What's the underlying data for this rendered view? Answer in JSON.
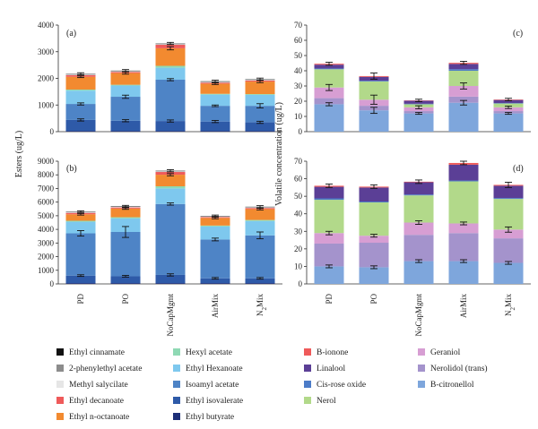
{
  "chart_data": [
    {
      "panel": "(a)",
      "type": "bar",
      "stacked": true,
      "ylabel": "",
      "ylim": [
        0,
        4000
      ],
      "yticks": [
        0,
        1000,
        2000,
        3000,
        4000
      ],
      "categories": [
        "PD",
        "PO",
        "NoCapMgmt",
        "AirMix",
        "N2Mix"
      ],
      "series": [
        {
          "name": "Ethyl butyrate",
          "values": [
            30,
            30,
            30,
            30,
            30
          ]
        },
        {
          "name": "Ethyl isovalerate",
          "values": [
            410,
            380,
            370,
            350,
            320
          ]
        },
        {
          "name": "Isoamyl acetate",
          "values": [
            600,
            900,
            1550,
            590,
            620
          ]
        },
        {
          "name": "Ethyl Hexanoate",
          "values": [
            500,
            420,
            450,
            420,
            410
          ]
        },
        {
          "name": "Hexyl acetate",
          "values": [
            40,
            30,
            70,
            30,
            30
          ]
        },
        {
          "name": "Ethyl n-octanoate",
          "values": [
            480,
            440,
            660,
            380,
            470
          ]
        },
        {
          "name": "Ethyl decanoate",
          "values": [
            60,
            40,
            130,
            40,
            40
          ]
        },
        {
          "name": "Methyl salycilate",
          "values": [
            20,
            20,
            20,
            20,
            20
          ]
        },
        {
          "name": "2-phenylethyl acetate",
          "values": [
            20,
            20,
            20,
            20,
            20
          ]
        },
        {
          "name": "Ethyl cinnamate",
          "values": [
            10,
            10,
            10,
            10,
            10
          ]
        }
      ],
      "error_bars": [
        [
          40,
          40,
          40,
          40,
          40
        ],
        [
          40,
          60,
          40,
          30,
          80
        ],
        [
          30,
          40,
          60,
          30,
          40
        ],
        [
          40,
          40,
          40,
          40,
          40
        ]
      ]
    },
    {
      "panel": "(b)",
      "type": "bar",
      "stacked": true,
      "ylabel": "",
      "ylim": [
        0,
        9000
      ],
      "yticks": [
        0,
        1000,
        2000,
        3000,
        4000,
        5000,
        6000,
        7000,
        8000,
        9000
      ],
      "categories": [
        "PD",
        "PO",
        "NoCapMgmt",
        "AirMix",
        "N2Mix"
      ],
      "series": [
        {
          "name": "Ethyl butyrate",
          "values": [
            60,
            60,
            60,
            60,
            60
          ]
        },
        {
          "name": "Ethyl isovalerate",
          "values": [
            550,
            500,
            600,
            350,
            350
          ]
        },
        {
          "name": "Isoamyl acetate",
          "values": [
            3100,
            3250,
            5200,
            2850,
            3150
          ]
        },
        {
          "name": "Ethyl Hexanoate",
          "values": [
            850,
            1000,
            1150,
            950,
            1050
          ]
        },
        {
          "name": "Hexyl acetate",
          "values": [
            70,
            80,
            150,
            70,
            80
          ]
        },
        {
          "name": "Ethyl n-octanoate",
          "values": [
            480,
            640,
            850,
            560,
            800
          ]
        },
        {
          "name": "Ethyl decanoate",
          "values": [
            100,
            80,
            200,
            60,
            80
          ]
        },
        {
          "name": "Methyl salycilate",
          "values": [
            40,
            40,
            40,
            40,
            40
          ]
        },
        {
          "name": "2-phenylethyl acetate",
          "values": [
            30,
            30,
            30,
            30,
            30
          ]
        },
        {
          "name": "Ethyl cinnamate",
          "values": [
            20,
            20,
            20,
            20,
            20
          ]
        }
      ],
      "error_bars": [
        [
          60,
          60,
          80,
          60,
          60
        ],
        [
          200,
          400,
          80,
          100,
          250
        ],
        [
          60,
          60,
          80,
          60,
          60
        ],
        [
          60,
          60,
          80,
          60,
          80
        ]
      ]
    },
    {
      "panel": "(c)",
      "type": "bar",
      "stacked": true,
      "ylabel": "",
      "ylim": [
        0,
        70
      ],
      "yticks": [
        0,
        10,
        20,
        30,
        40,
        50,
        60,
        70
      ],
      "categories": [
        "PD",
        "PO",
        "NoCapMgmt",
        "AirMix",
        "N2Mix"
      ],
      "series": [
        {
          "name": "B-citronellol",
          "values": [
            18,
            14,
            12,
            19,
            12
          ]
        },
        {
          "name": "Nerolidol (trans)",
          "values": [
            4,
            3,
            1.5,
            4,
            1.5
          ]
        },
        {
          "name": "Geraniol",
          "values": [
            7,
            4,
            2.5,
            7,
            2.5
          ]
        },
        {
          "name": "Nerol",
          "values": [
            12,
            12,
            2,
            10,
            2.5
          ]
        },
        {
          "name": "Cis-rose oxide",
          "values": [
            0.5,
            0.5,
            0.3,
            1,
            0.3
          ]
        },
        {
          "name": "Linalool",
          "values": [
            2.5,
            2.5,
            2,
            3.5,
            2
          ]
        },
        {
          "name": "B-ionone",
          "values": [
            0.6,
            0.5,
            0.2,
            0.7,
            0.3
          ]
        }
      ],
      "error_bars": [
        [
          1,
          2,
          0.6,
          1.5,
          0.6
        ],
        [
          2,
          3,
          1,
          2,
          0.8
        ],
        [
          1,
          2,
          0.8,
          1,
          0.8
        ]
      ]
    },
    {
      "panel": "(d)",
      "type": "bar",
      "stacked": true,
      "ylabel": "",
      "ylim": [
        0,
        70
      ],
      "yticks": [
        0,
        10,
        20,
        30,
        40,
        50,
        60,
        70
      ],
      "categories": [
        "PD",
        "PO",
        "NoCapMgmt",
        "AirMix",
        "N2Mix"
      ],
      "series": [
        {
          "name": "B-citronellol",
          "values": [
            10,
            9.5,
            13,
            13,
            12
          ]
        },
        {
          "name": "Nerolidol (trans)",
          "values": [
            13,
            14,
            15,
            16,
            14
          ]
        },
        {
          "name": "Geraniol",
          "values": [
            6,
            4,
            7,
            5.5,
            5
          ]
        },
        {
          "name": "Nerol",
          "values": [
            19,
            19,
            15.5,
            24,
            17.5
          ]
        },
        {
          "name": "Cis-rose oxide",
          "values": [
            0.8,
            0.5,
            0.5,
            0.5,
            0.5
          ]
        },
        {
          "name": "Linalool",
          "values": [
            6.6,
            8,
            7,
            9,
            7
          ]
        },
        {
          "name": "B-ionone",
          "values": [
            0.6,
            0.5,
            0.3,
            1,
            0.5
          ]
        }
      ],
      "error_bars": [
        [
          0.8,
          0.8,
          0.8,
          0.8,
          0.8
        ],
        [
          1,
          0.8,
          1,
          0.8,
          1.5
        ],
        [
          1,
          1,
          1,
          1,
          1.5
        ]
      ]
    }
  ],
  "ylabel_left": "Esters (ug/L)",
  "ylabel_right": "Volatile concentration (ug/L)",
  "colors": {
    "Ethyl cinnamate": "#111111",
    "2-phenylethyl acetate": "#8c8c8c",
    "Methyl salycilate": "#e6e6e6",
    "Ethyl decanoate": "#ef5a5a",
    "Ethyl n-octanoate": "#f28a30",
    "Hexyl acetate": "#8fd9b4",
    "Ethyl Hexanoate": "#7ec8ee",
    "Isoamyl acetate": "#4e84c6",
    "Ethyl isovalerate": "#2e5aa8",
    "Ethyl butyrate": "#1d2f78",
    "B-ionone": "#ef5a5a",
    "Linalool": "#5b3f96",
    "Cis-rose oxide": "#4c7cc8",
    "Nerol": "#b2d98a",
    "Geraniol": "#d79ed3",
    "Nerolidol (trans)": "#a493cc",
    "B-citronellol": "#7ea6dc"
  },
  "legend_esters": [
    "Ethyl cinnamate",
    "Hexyl acetate",
    "2-phenylethyl acetate",
    "Ethyl Hexanoate",
    "Methyl salycilate",
    "Isoamyl acetate",
    "Ethyl decanoate",
    "Ethyl isovalerate",
    "Ethyl n-octanoate",
    "Ethyl butyrate"
  ],
  "legend_volatiles": [
    "B-ionone",
    "Geraniol",
    "Linalool",
    "Nerolidol (trans)",
    "Cis-rose oxide",
    "B-citronellol",
    "Nerol"
  ]
}
